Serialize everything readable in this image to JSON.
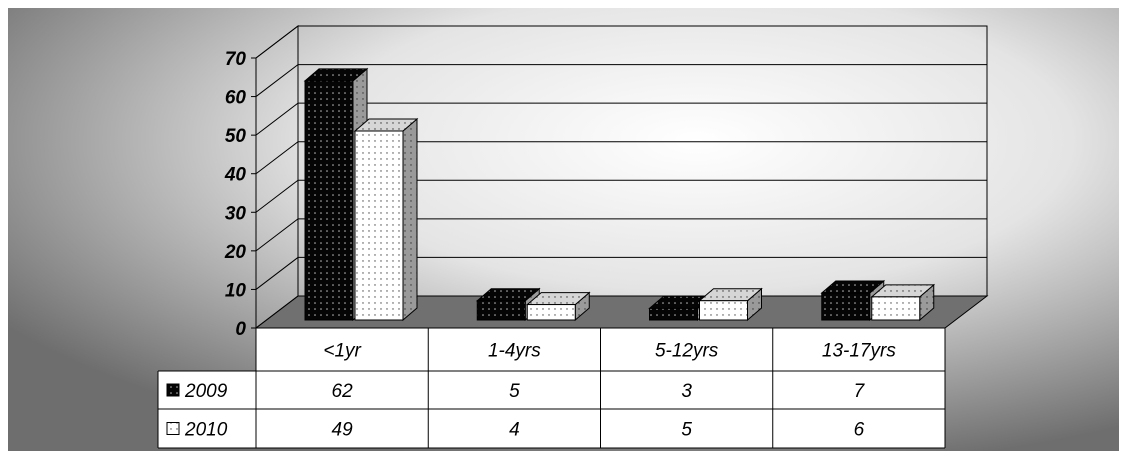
{
  "chart_data": {
    "type": "bar",
    "title": "",
    "xlabel": "",
    "ylabel": "",
    "ylim": [
      0,
      70
    ],
    "yticks": [
      0,
      10,
      20,
      30,
      40,
      50,
      60,
      70
    ],
    "grid": true,
    "legend": "data-table-left",
    "categories": [
      "<1yr",
      "1-4yrs",
      "5-12yrs",
      "13-17yrs"
    ],
    "series": [
      {
        "name": "2009",
        "values": [
          62,
          5,
          3,
          7
        ],
        "pattern": "black-with-white-dots",
        "color": "#000000"
      },
      {
        "name": "2010",
        "values": [
          49,
          4,
          5,
          6
        ],
        "pattern": "white-with-black-dots",
        "color": "#ffffff"
      }
    ],
    "floor_color": "#707070",
    "depth": true
  }
}
